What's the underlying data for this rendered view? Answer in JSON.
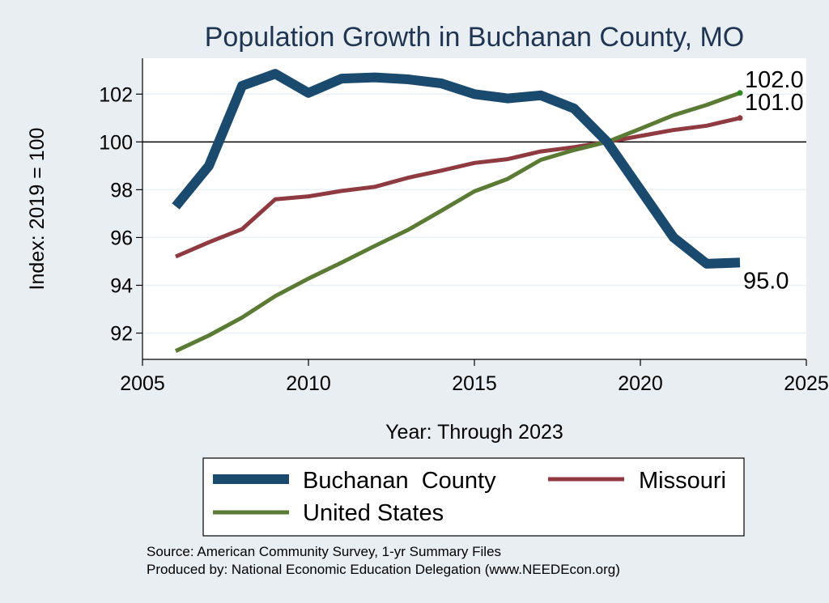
{
  "chart_data": {
    "type": "line",
    "title": "Population Growth in Buchanan County, MO",
    "xlabel": "Year: Through 2023",
    "ylabel": "Index: 2019 = 100",
    "xlim": [
      2005,
      2025
    ],
    "ylim": [
      90.9,
      103.5
    ],
    "xticks": [
      2005,
      2010,
      2015,
      2020,
      2025
    ],
    "yticks": [
      92,
      94,
      96,
      98,
      100,
      102
    ],
    "reference_line": 100,
    "x": [
      2006,
      2007,
      2008,
      2009,
      2010,
      2011,
      2012,
      2013,
      2014,
      2015,
      2016,
      2017,
      2018,
      2019,
      2020,
      2021,
      2022,
      2023
    ],
    "series": [
      {
        "name": "Buchanan  County",
        "color": "#1a4a6e",
        "values": [
          97.3,
          99.0,
          102.35,
          102.85,
          102.05,
          102.65,
          102.7,
          102.62,
          102.45,
          102.0,
          101.82,
          101.95,
          101.4,
          100.0,
          98.0,
          96.0,
          94.9,
          94.95
        ],
        "end_label": "95.0"
      },
      {
        "name": "Missouri",
        "color": "#8f3a40",
        "values": [
          95.2,
          95.8,
          96.35,
          97.6,
          97.72,
          97.95,
          98.12,
          98.5,
          98.8,
          99.12,
          99.28,
          99.6,
          99.78,
          100.0,
          100.25,
          100.5,
          100.68,
          101.0
        ],
        "end_label": "101.0"
      },
      {
        "name": "United States",
        "color": "#5b7a34",
        "values": [
          91.25,
          91.9,
          92.65,
          93.55,
          94.28,
          94.95,
          95.65,
          96.32,
          97.12,
          97.93,
          98.45,
          99.25,
          99.66,
          100.0,
          100.55,
          101.12,
          101.55,
          102.05
        ],
        "end_label": "102.0"
      }
    ],
    "legend": {
      "position": "bottom",
      "items": [
        "Buchanan  County",
        "Missouri",
        "United States"
      ]
    }
  },
  "source_line": "Source: American Community Survey, 1-yr Summary Files",
  "produced_line": "Produced by: National Economic Education Delegation (www.NEEDEcon.org)"
}
